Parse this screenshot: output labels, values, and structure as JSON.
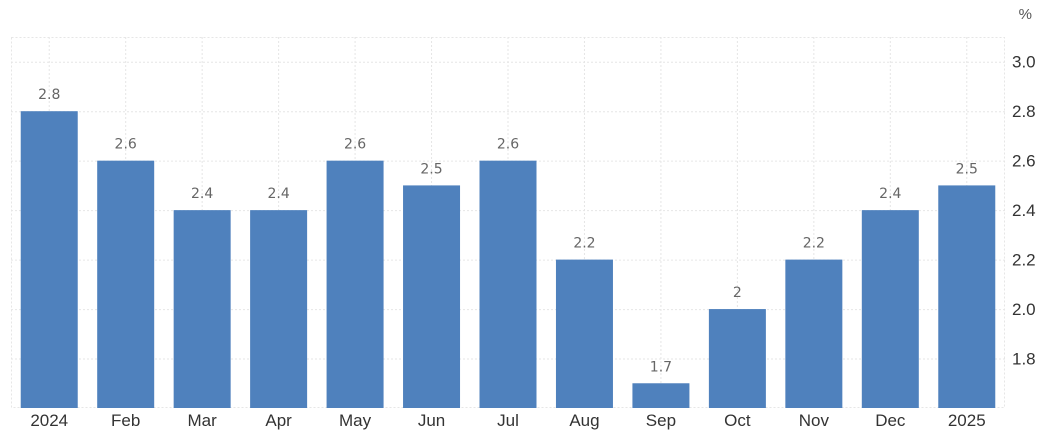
{
  "chart_data": {
    "type": "bar",
    "unit": "%",
    "categories": [
      "2024",
      "Feb",
      "Mar",
      "Apr",
      "May",
      "Jun",
      "Jul",
      "Aug",
      "Sep",
      "Oct",
      "Nov",
      "Dec",
      "2025"
    ],
    "values": [
      2.8,
      2.6,
      2.4,
      2.4,
      2.6,
      2.5,
      2.6,
      2.2,
      1.7,
      2.0,
      2.2,
      2.4,
      2.5
    ],
    "data_labels": [
      "2.8",
      "2.6",
      "2.4",
      "2.4",
      "2.6",
      "2.5",
      "2.6",
      "2.2",
      "1.7",
      "2",
      "2.2",
      "2.4",
      "2.5"
    ],
    "y_ticks": [
      "1.8",
      "2.0",
      "2.2",
      "2.4",
      "2.6",
      "2.8",
      "3.0"
    ],
    "ylim": [
      1.6,
      3.1
    ],
    "ytick_values": [
      1.8,
      2.0,
      2.2,
      2.4,
      2.6,
      2.8,
      3.0
    ],
    "grid": true,
    "legend": "none",
    "bar_color": "#4f81bd"
  }
}
